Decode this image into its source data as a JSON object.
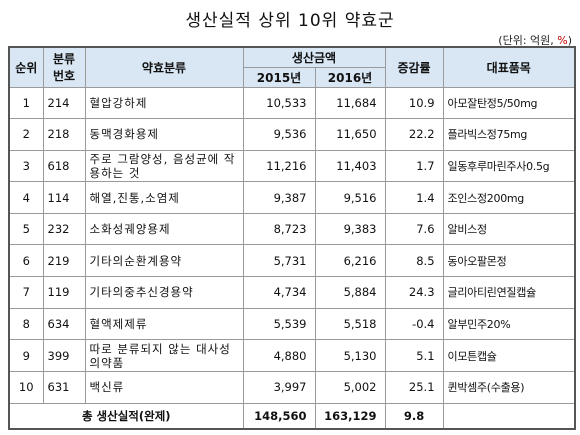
{
  "title": "생산실적 상위 10위 약효군",
  "unit_prefix": "(단위: 억원, ",
  "unit_pct": "%",
  "unit_suffix": ")",
  "headers": {
    "rank": "순위",
    "code_line1": "분류",
    "code_line2": "번호",
    "category": "약효분류",
    "amount": "생산금액",
    "y2015": "2015년",
    "y2016": "2016년",
    "change": "증감률",
    "product": "대표품목"
  },
  "rows": [
    {
      "rank": "1",
      "code": "214",
      "category": "혈압강하제",
      "y2015": "10,533",
      "y2016": "11,684",
      "change": "10.9",
      "product": "아모잘탄정5/50mg"
    },
    {
      "rank": "2",
      "code": "218",
      "category": "동맥경화용제",
      "y2015": "9,536",
      "y2016": "11,650",
      "change": "22.2",
      "product": "플라빅스정75mg"
    },
    {
      "rank": "3",
      "code": "618",
      "category": "주로 그람양성, 음성균에 작용하는 것",
      "y2015": "11,216",
      "y2016": "11,403",
      "change": "1.7",
      "product": "일동후루마린주사0.5g"
    },
    {
      "rank": "4",
      "code": "114",
      "category": "해열,진통,소염제",
      "y2015": "9,387",
      "y2016": "9,516",
      "change": "1.4",
      "product": "조인스정200mg"
    },
    {
      "rank": "5",
      "code": "232",
      "category": "소화성궤양용제",
      "y2015": "8,723",
      "y2016": "9,383",
      "change": "7.6",
      "product": "알비스정"
    },
    {
      "rank": "6",
      "code": "219",
      "category": "기타의순환계용약",
      "y2015": "5,731",
      "y2016": "6,216",
      "change": "8.5",
      "product": "동아오팔몬정"
    },
    {
      "rank": "7",
      "code": "119",
      "category": "기타의중추신경용약",
      "y2015": "4,734",
      "y2016": "5,884",
      "change": "24.3",
      "product": "글리아티린연질캡슐"
    },
    {
      "rank": "8",
      "code": "634",
      "category": "혈액제제류",
      "y2015": "5,539",
      "y2016": "5,518",
      "change": "-0.4",
      "product": "알부민주20%"
    },
    {
      "rank": "9",
      "code": "399",
      "category": "따로 분류되지 않는 대사성의약품",
      "y2015": "4,880",
      "y2016": "5,130",
      "change": "5.1",
      "product": "이모튼캡슐"
    },
    {
      "rank": "10",
      "code": "631",
      "category": "백신류",
      "y2015": "3,997",
      "y2016": "5,002",
      "change": "25.1",
      "product": "퀸박셈주(수출용)"
    }
  ],
  "total": {
    "label": "총 생산실적(완제)",
    "y2015": "148,560",
    "y2016": "163,129",
    "change": "9.8"
  }
}
